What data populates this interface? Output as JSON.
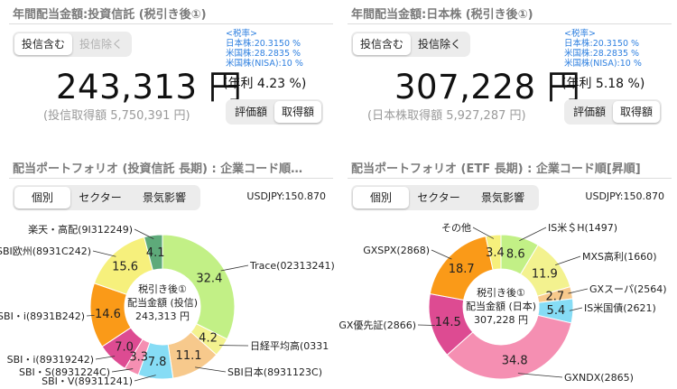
{
  "left": {
    "header": "年間配当金額:投資信託 (税引き後①)",
    "toggle": {
      "include": "投信含む",
      "exclude": "投信除く",
      "active": "include"
    },
    "tax_rates": [
      "<税率>",
      "日本株:20.3150 %",
      "米国株:28.2835 %",
      "米国株(NISA):10 %"
    ],
    "amount": "243,313 円",
    "yield": "(年利 4.23 %)",
    "acquisition": "(投信取得額 5,750,391 円)",
    "value_toggle": {
      "valuation": "評価額",
      "acquisition": "取得額",
      "active": "acquisition"
    },
    "portfolio_title": "配当ポートフォリオ (投資信託 長期) : 企業コード順…",
    "tabs": {
      "individual": "個別",
      "sector": "セクター",
      "economy": "景気影響",
      "active": "individual"
    },
    "usdjpy": "USDJPY:150.870",
    "center": [
      "税引き後①",
      "配当金額 (投信)",
      "243,313 円"
    ]
  },
  "right": {
    "header": "年間配当金額:日本株 (税引き後①)",
    "toggle": {
      "include": "投信含む",
      "exclude": "投信除く",
      "active": "include"
    },
    "tax_rates": [
      "<税率>",
      "日本株:20.3150 %",
      "米国株:28.2835 %",
      "米国株(NISA):10 %"
    ],
    "amount": "307,228 円",
    "yield": "(年利 5.18 %)",
    "acquisition": "(日本株取得額 5,927,287 円)",
    "value_toggle": {
      "valuation": "評価額",
      "acquisition": "取得額",
      "active": "acquisition"
    },
    "portfolio_title": "配当ポートフォリオ (ETF 長期) : 企業コード順[昇順]",
    "tabs": {
      "individual": "個別",
      "sector": "セクター",
      "economy": "景気影響",
      "active": "individual"
    },
    "usdjpy": "USDJPY:150.870",
    "center": [
      "税引き後①",
      "配当金額 (日本)",
      "307,228 円"
    ]
  },
  "chart_data": [
    {
      "type": "pie",
      "donut": true,
      "panel": "left",
      "slices": [
        {
          "label": "Trace(02313241)",
          "value": 32.4,
          "color": "#c2f086"
        },
        {
          "label": "日経平均高(0331",
          "value": 4.2,
          "color": "#f3f28f"
        },
        {
          "label": "SBI日本(8931123C)",
          "value": 11.1,
          "color": "#f7c98c"
        },
        {
          "label": "SBI・V(89311241)",
          "value": 7.8,
          "color": "#86dcf5"
        },
        {
          "label": "SBI・S(8931224C)",
          "value": 3.3,
          "color": "#f58fb2"
        },
        {
          "label": "SBI・i(89319242)",
          "value": 7.0,
          "color": "#dd4b92"
        },
        {
          "label": "SBI・i(8931B242)",
          "value": 14.6,
          "color": "#fa9a18"
        },
        {
          "label": "SBI欧州(8931C242)",
          "value": 15.6,
          "color": "#f6f07c"
        },
        {
          "label": "楽天・高配(9I312249)",
          "value": 4.1,
          "color": "#5eaa7a"
        }
      ]
    },
    {
      "type": "pie",
      "donut": true,
      "panel": "right",
      "slices": [
        {
          "label": "IS米＄H(1497)",
          "value": 8.6,
          "color": "#c2f086"
        },
        {
          "label": "MXS高利(1660)",
          "value": 11.9,
          "color": "#f3f28f"
        },
        {
          "label": "GXスーパ(2564)",
          "value": 2.7,
          "color": "#f7c98c"
        },
        {
          "label": "IS米国債(2621)",
          "value": 5.4,
          "color": "#86dcf5"
        },
        {
          "label": "GXNDX(2865)",
          "value": 34.8,
          "color": "#f58fb2"
        },
        {
          "label": "GX優先証(2866)",
          "value": 14.5,
          "color": "#dd4b92"
        },
        {
          "label": "GXSPX(2868)",
          "value": 18.7,
          "color": "#fa9a18"
        },
        {
          "label": "その他",
          "value": 3.4,
          "color": "#f6f07c"
        }
      ]
    }
  ]
}
